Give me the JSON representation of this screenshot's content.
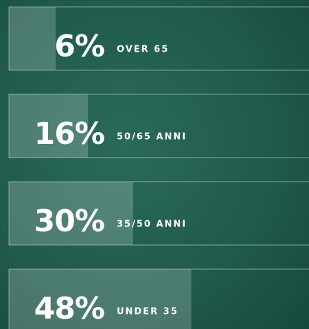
{
  "chart_data": {
    "type": "bar",
    "orientation": "horizontal",
    "categories": [
      "OVER 65",
      "50/65 ANNI",
      "35/50 ANNI",
      "UNDER 35"
    ],
    "values": [
      6,
      16,
      30,
      48
    ],
    "value_labels": [
      "6%",
      "16%",
      "30%",
      "48%"
    ]
  }
}
